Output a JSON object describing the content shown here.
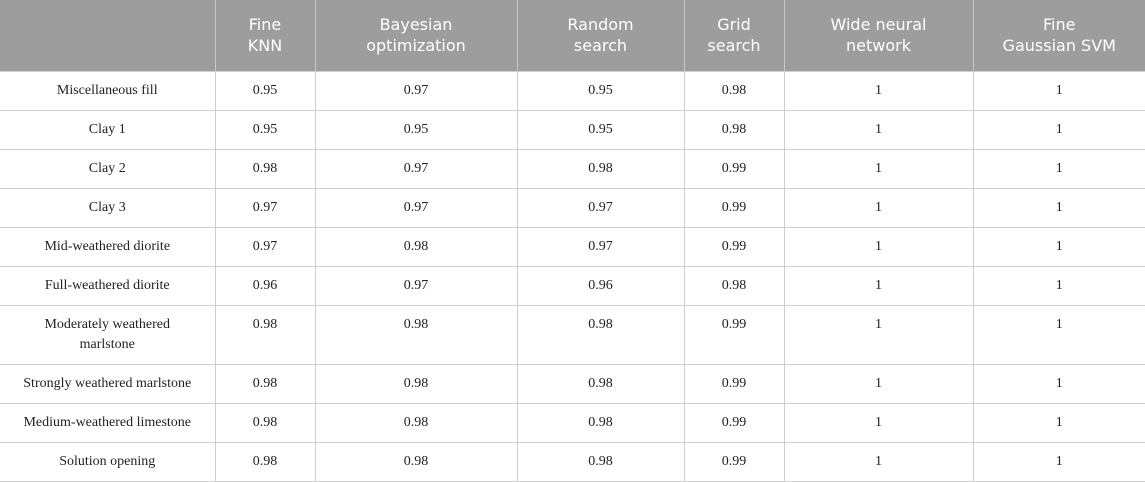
{
  "table": {
    "header": [
      "Fine\nKNN",
      "Bayesian\noptimization",
      "Random\nsearch",
      "Grid\nsearch",
      "Wide neural\nnetwork",
      "Fine\nGaussian SVM"
    ],
    "rows": [
      [
        "Miscellaneous fill",
        0.95,
        0.97,
        0.95,
        0.98,
        1,
        1
      ],
      [
        "Clay 1",
        0.95,
        0.95,
        0.95,
        0.98,
        1,
        1
      ],
      [
        "Clay 2",
        0.98,
        0.97,
        0.98,
        0.99,
        1,
        1
      ],
      [
        "Clay 3",
        0.97,
        0.97,
        0.97,
        0.99,
        1,
        1
      ],
      [
        "Mid-weathered diorite",
        0.97,
        0.98,
        0.97,
        0.99,
        1,
        1
      ],
      [
        "Full-weathered diorite",
        0.96,
        0.97,
        0.96,
        0.98,
        1,
        1
      ],
      [
        "Moderately weathered\nmarlstone",
        0.98,
        0.98,
        0.98,
        0.99,
        1,
        1
      ],
      [
        "Strongly weathered marlstone",
        0.98,
        0.98,
        0.98,
        0.99,
        1,
        1
      ],
      [
        "Medium-weathered limestone",
        0.98,
        0.98,
        0.98,
        0.99,
        1,
        1
      ],
      [
        "Solution opening",
        0.98,
        0.98,
        0.98,
        0.99,
        1,
        1
      ]
    ]
  }
}
